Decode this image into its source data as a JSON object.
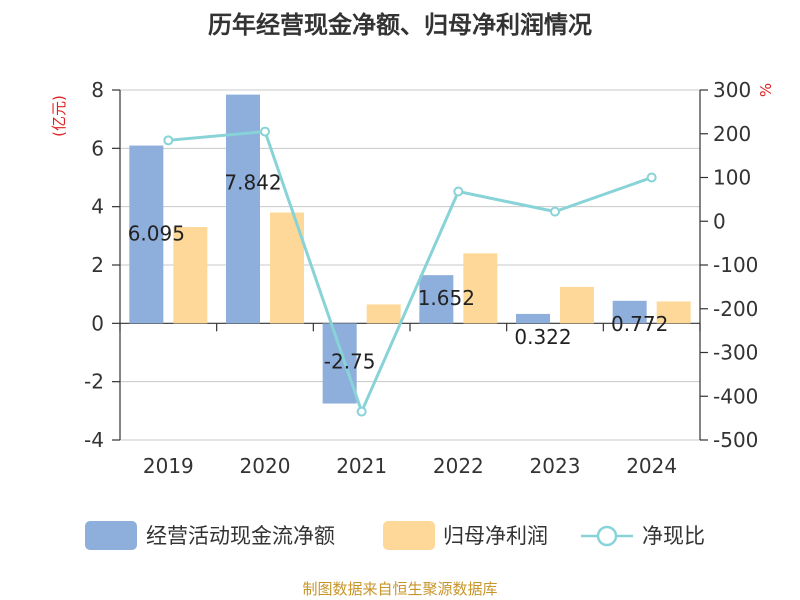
{
  "title": "历年经营现金净额、归母净利润情况",
  "source_note": "制图数据来自恒生聚源数据库",
  "colors": {
    "cash_flow": "#8eaedc",
    "net_profit": "#fdd898",
    "ratio": "#88d3d8",
    "unit": "#e02020",
    "source": "#c8952a",
    "grid": "#c8c8c8"
  },
  "chart_data": {
    "type": "bar",
    "categories": [
      "2019",
      "2020",
      "2021",
      "2022",
      "2023",
      "2024"
    ],
    "series": [
      {
        "name": "经营活动现金流净额",
        "type": "bar",
        "axis": "left",
        "values": [
          6.095,
          7.842,
          -2.75,
          1.652,
          0.322,
          0.772
        ],
        "labels": [
          "6.095",
          "7.842",
          "-2.75",
          "1.652",
          "0.322",
          "0.772"
        ]
      },
      {
        "name": "归母净利润",
        "type": "bar",
        "axis": "left",
        "values": [
          3.3,
          3.8,
          0.65,
          2.4,
          1.25,
          0.75
        ]
      },
      {
        "name": "净现比",
        "type": "line",
        "axis": "right",
        "values": [
          185,
          205,
          -435,
          68,
          22,
          100
        ]
      }
    ],
    "y_left": {
      "unit": "(亿元)",
      "min": -4,
      "max": 8,
      "ticks": [
        8,
        6,
        4,
        2,
        0,
        -2,
        -4
      ]
    },
    "y_right": {
      "unit": "%",
      "min": -500,
      "max": 300,
      "ticks": [
        300,
        200,
        100,
        0,
        -100,
        -200,
        -300,
        -400,
        -500
      ]
    },
    "grid": true,
    "legend_position": "bottom"
  }
}
